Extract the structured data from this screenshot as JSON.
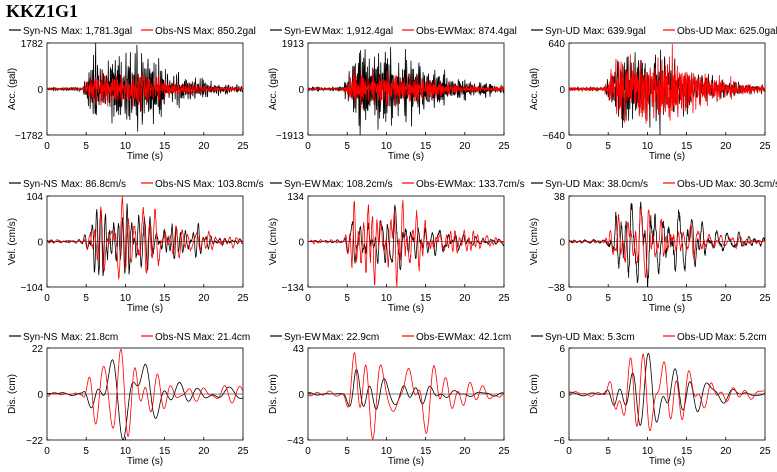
{
  "title": "KKZ1G1",
  "colors": {
    "syn": "#000000",
    "obs": "#ff0000"
  },
  "xlabel": "Time (s)",
  "xticks": [
    0,
    5,
    10,
    15,
    20,
    25
  ],
  "chart_data": [
    {
      "type": "line",
      "row": 0,
      "col": 0,
      "ylabel": "Acc. (gal)",
      "ylim": [
        -1782,
        1782
      ],
      "yticks": [
        "1782",
        "0",
        "-1782"
      ],
      "xlim": [
        0,
        25
      ],
      "xlabel": "Time (s)",
      "series": [
        {
          "name": "Syn-NS",
          "max_label": "Max: 1,781.3gal",
          "peak": 1781.3
        },
        {
          "name": "Obs-NS",
          "max_label": "Max: 850.2gal",
          "peak": 850.2
        }
      ]
    },
    {
      "type": "line",
      "row": 0,
      "col": 1,
      "ylabel": "Acc. (gal)",
      "ylim": [
        -1913,
        1913
      ],
      "yticks": [
        "1913",
        "0",
        "-1913"
      ],
      "xlim": [
        0,
        25
      ],
      "xlabel": "Time (s)",
      "series": [
        {
          "name": "Syn-EW",
          "max_label": "Max: 1,912.4gal",
          "peak": 1912.4
        },
        {
          "name": "Obs-EW",
          "max_label": "Max: 874.4gal",
          "peak": 874.4
        }
      ]
    },
    {
      "type": "line",
      "row": 0,
      "col": 2,
      "ylabel": "Acc. (gal)",
      "ylim": [
        -640,
        640
      ],
      "yticks": [
        "640",
        "0",
        "-640"
      ],
      "xlim": [
        0,
        25
      ],
      "xlabel": "Time (s)",
      "series": [
        {
          "name": "Syn-UD",
          "max_label": "Max: 639.9gal",
          "peak": 639.9
        },
        {
          "name": "Obs-UD",
          "max_label": "Max: 625.0gal",
          "peak": 625.0
        }
      ]
    },
    {
      "type": "line",
      "row": 1,
      "col": 0,
      "ylabel": "Vel. (cm/s)",
      "ylim": [
        -104,
        104
      ],
      "yticks": [
        "104",
        "0",
        "-104"
      ],
      "xlim": [
        0,
        25
      ],
      "xlabel": "Time (s)",
      "series": [
        {
          "name": "Syn-NS",
          "max_label": "Max: 86.8cm/s",
          "peak": 86.8
        },
        {
          "name": "Obs-NS",
          "max_label": "Max: 103.8cm/s",
          "peak": 103.8
        }
      ]
    },
    {
      "type": "line",
      "row": 1,
      "col": 1,
      "ylabel": "Vel. (cm/s)",
      "ylim": [
        -134,
        134
      ],
      "yticks": [
        "134",
        "0",
        "-134"
      ],
      "xlim": [
        0,
        25
      ],
      "xlabel": "Time (s)",
      "series": [
        {
          "name": "Syn-EW",
          "max_label": "Max: 108.2cm/s",
          "peak": 108.2
        },
        {
          "name": "Obs-EW",
          "max_label": "Max: 133.7cm/s",
          "peak": 133.7
        }
      ]
    },
    {
      "type": "line",
      "row": 1,
      "col": 2,
      "ylabel": "Vel. (cm/s)",
      "ylim": [
        -38,
        38
      ],
      "yticks": [
        "38",
        "0",
        "-38"
      ],
      "xlim": [
        0,
        25
      ],
      "xlabel": "Time (s)",
      "series": [
        {
          "name": "Syn-UD",
          "max_label": "Max: 38.0cm/s",
          "peak": 38.0
        },
        {
          "name": "Obs-UD",
          "max_label": "Max: 30.3cm/s",
          "peak": 30.3
        }
      ]
    },
    {
      "type": "line",
      "row": 2,
      "col": 0,
      "ylabel": "Dis. (cm)",
      "ylim": [
        -22,
        22
      ],
      "yticks": [
        "22",
        "0",
        "-22"
      ],
      "xlim": [
        0,
        25
      ],
      "xlabel": "Time (s)",
      "series": [
        {
          "name": "Syn-NS",
          "max_label": "Max: 21.8cm",
          "peak": 21.8
        },
        {
          "name": "Obs-NS",
          "max_label": "Max: 21.4cm",
          "peak": 21.4
        }
      ]
    },
    {
      "type": "line",
      "row": 2,
      "col": 1,
      "ylabel": "Dis. (cm)",
      "ylim": [
        -43,
        43
      ],
      "yticks": [
        "43",
        "0",
        "-43"
      ],
      "xlim": [
        0,
        25
      ],
      "xlabel": "Time (s)",
      "series": [
        {
          "name": "Syn-EW",
          "max_label": "Max: 22.9cm",
          "peak": 22.9
        },
        {
          "name": "Obs-EW",
          "max_label": "Max: 42.1cm",
          "peak": 42.1
        }
      ]
    },
    {
      "type": "line",
      "row": 2,
      "col": 2,
      "ylabel": "Dis. (cm)",
      "ylim": [
        -6,
        6
      ],
      "yticks": [
        "6",
        "0",
        "-6"
      ],
      "xlim": [
        0,
        25
      ],
      "xlabel": "Time (s)",
      "series": [
        {
          "name": "Syn-UD",
          "max_label": "Max: 5.3cm",
          "peak": 5.3
        },
        {
          "name": "Obs-UD",
          "max_label": "Max: 5.2cm",
          "peak": 5.2
        }
      ]
    }
  ]
}
